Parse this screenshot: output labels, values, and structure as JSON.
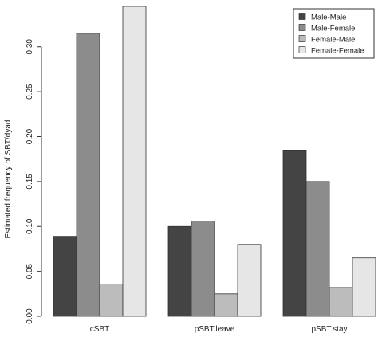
{
  "chart_data": {
    "type": "bar",
    "title": "",
    "xlabel": "",
    "ylabel": "Estimated frequency of SBT/dyad",
    "categories": [
      "cSBT",
      "pSBT.leave",
      "pSBT.stay"
    ],
    "series": [
      {
        "name": "Male-Male",
        "color": "#444444",
        "values": [
          0.089,
          0.1,
          0.185
        ]
      },
      {
        "name": "Male-Female",
        "color": "#8c8c8c",
        "values": [
          0.315,
          0.106,
          0.15
        ]
      },
      {
        "name": "Female-Male",
        "color": "#bcbcbc",
        "values": [
          0.036,
          0.025,
          0.032
        ]
      },
      {
        "name": "Female-Female",
        "color": "#e6e6e6",
        "values": [
          0.345,
          0.08,
          0.065
        ]
      }
    ],
    "yticks": [
      "0.00",
      "0.05",
      "0.10",
      "0.15",
      "0.20",
      "0.25",
      "0.30"
    ],
    "ylim": [
      0,
      0.345
    ],
    "grid": false,
    "legend_position": "top-right",
    "bar_stroke": "#333333"
  }
}
